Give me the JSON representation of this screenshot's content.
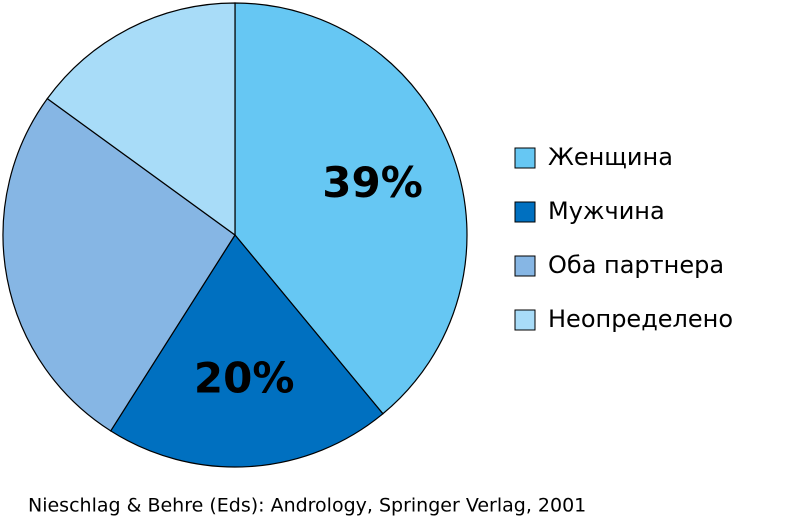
{
  "chart_data": {
    "type": "pie",
    "categories": [
      "Женщина",
      "Мужчина",
      "Оба партнера",
      "Неопределено"
    ],
    "values": [
      39,
      20,
      26,
      15
    ],
    "value_labels": [
      "39%",
      "20%",
      null,
      null
    ],
    "colors": [
      "#66c7f3",
      "#0070c0",
      "#86b6e4",
      "#a8dcf8"
    ],
    "legend": "right",
    "source": "Nieschlag & Behre (Eds): Andrology, Springer Verlag, 2001"
  }
}
